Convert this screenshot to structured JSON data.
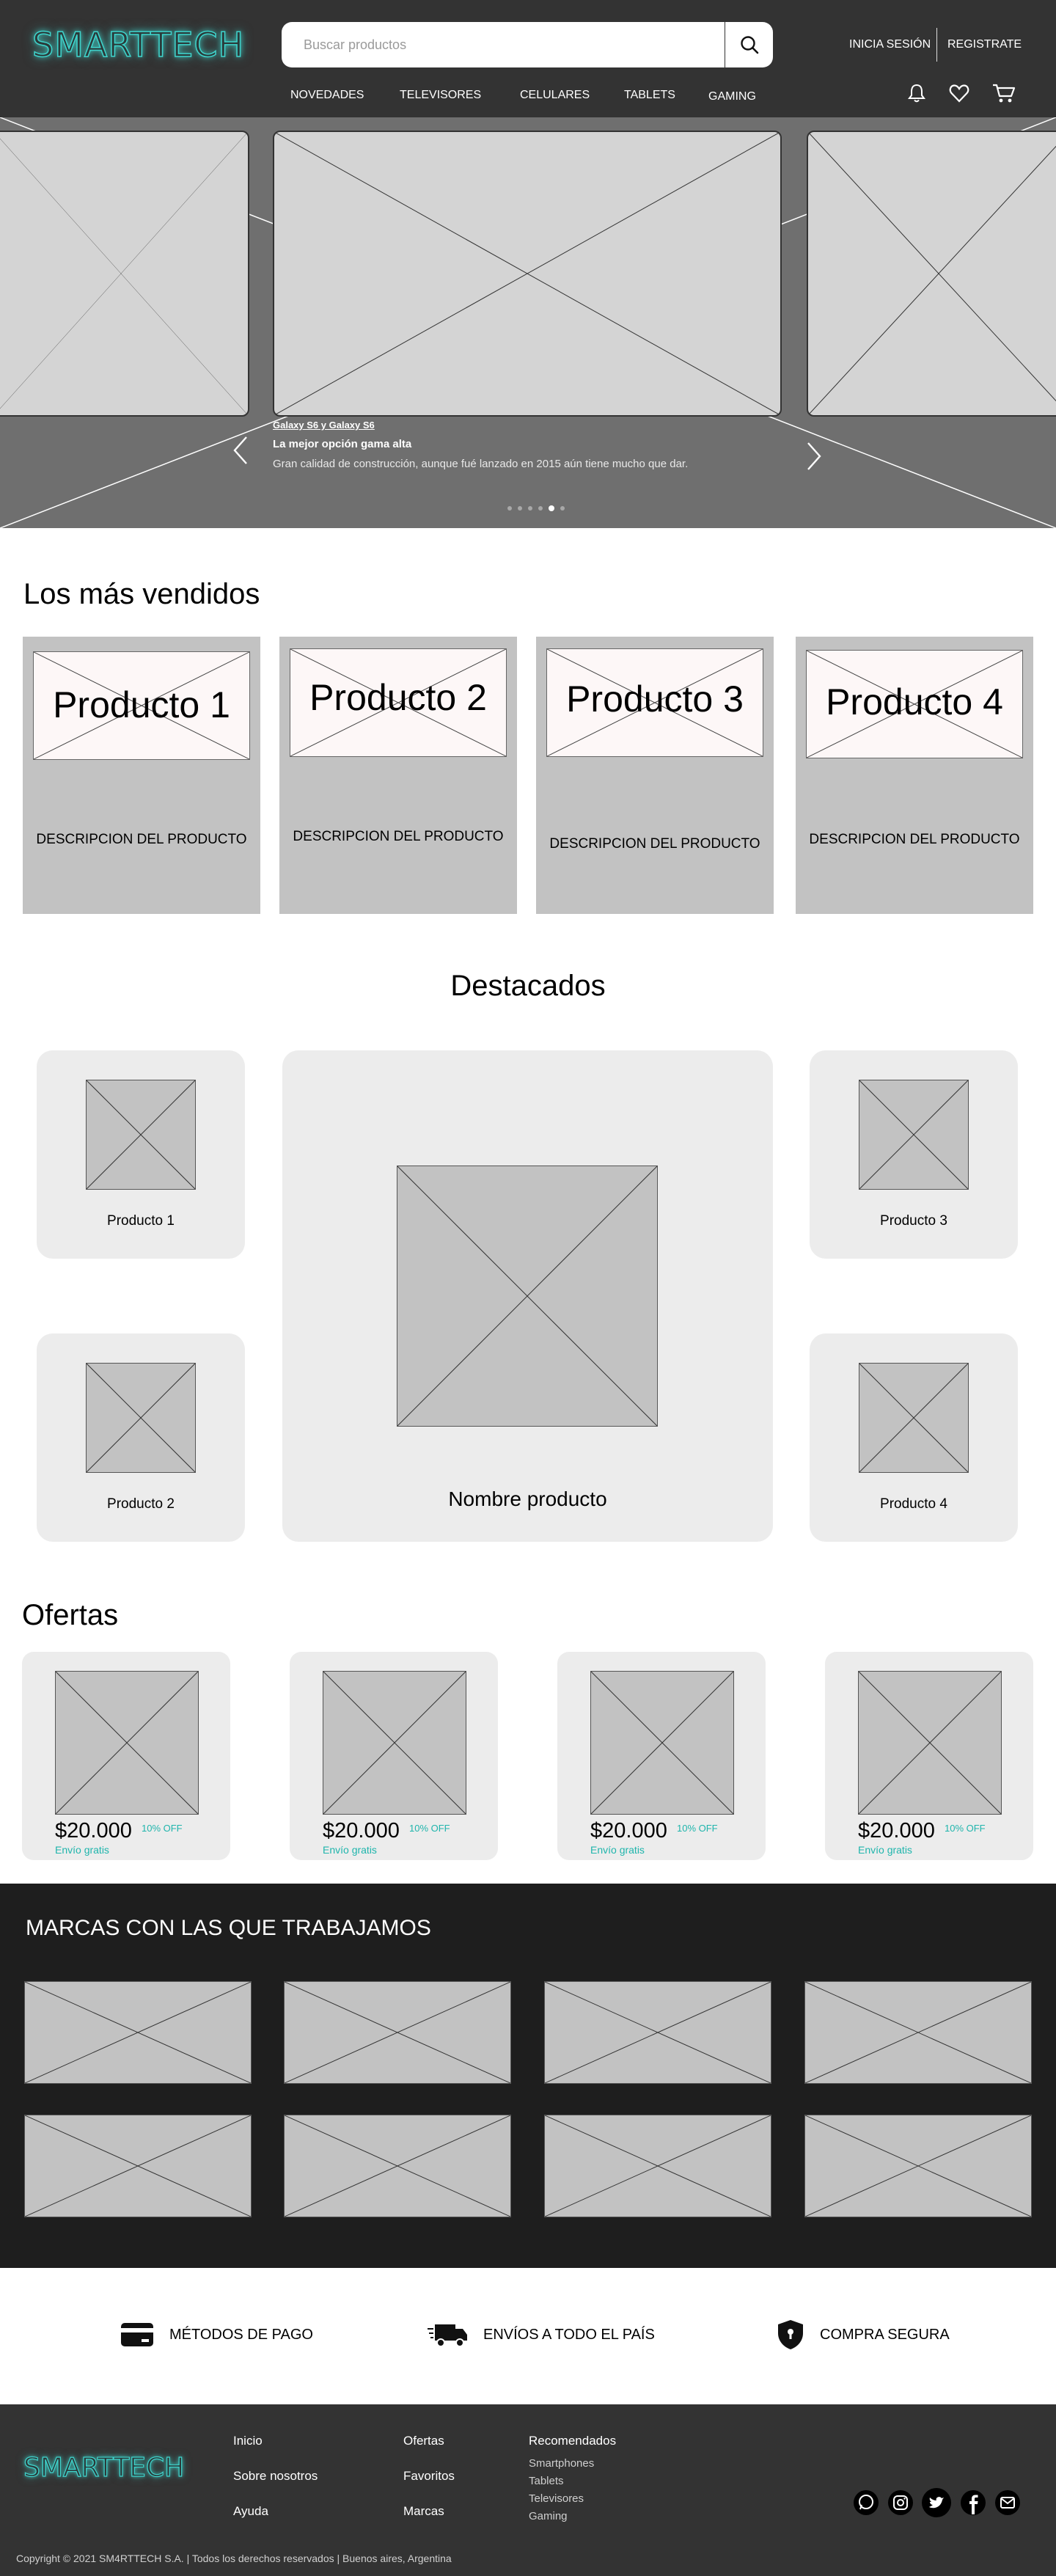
{
  "header": {
    "logo": "SMARTTECH",
    "search_placeholder": "Buscar productos",
    "login": "INICIA SESIÓN",
    "register": "REGISTRATE",
    "nav": [
      "NOVEDADES",
      "TELEVISORES",
      "CELULARES",
      "TABLETS",
      "GAMING"
    ],
    "icons": [
      "bell-icon",
      "heart-icon",
      "cart-icon"
    ]
  },
  "hero": {
    "caption_small": "Galaxy S6 y Galaxy S6",
    "caption_title": "La mejor opción gama alta",
    "caption_desc": "Gran calidad de construcción, aunque fué lanzado en 2015 aún tiene mucho que dar.",
    "dots_count": 6,
    "active_dot": 4
  },
  "best_sellers": {
    "title": "Los más vendidos",
    "items": [
      {
        "name": "Producto 1",
        "desc": "DESCRIPCION DEL PRODUCTO"
      },
      {
        "name": "Producto 2",
        "desc": "DESCRIPCION DEL PRODUCTO"
      },
      {
        "name": "Producto 3",
        "desc": "DESCRIPCION DEL PRODUCTO"
      },
      {
        "name": "Producto 4",
        "desc": "DESCRIPCION DEL PRODUCTO"
      }
    ]
  },
  "featured": {
    "title": "Destacados",
    "items": [
      "Producto 1",
      "Producto 2",
      "Producto 3",
      "Producto 4"
    ],
    "main": "Nombre producto"
  },
  "offers": {
    "title": "Ofertas",
    "items": [
      {
        "price": "$20.000",
        "discount": "10% OFF",
        "shipping": "Envío gratis"
      },
      {
        "price": "$20.000",
        "discount": "10% OFF",
        "shipping": "Envío gratis"
      },
      {
        "price": "$20.000",
        "discount": "10% OFF",
        "shipping": "Envío gratis"
      },
      {
        "price": "$20.000",
        "discount": "10% OFF",
        "shipping": "Envío gratis"
      }
    ]
  },
  "brands": {
    "title": "MARCAS CON LAS QUE TRABAJAMOS",
    "count": 8
  },
  "features": {
    "payment": "MÉTODOS DE PAGO",
    "shipping": "ENVÍOS A TODO EL PAÍS",
    "secure": "COMPRA SEGURA"
  },
  "footer": {
    "logo": "SMARTTECH",
    "col1": [
      "Inicio",
      "Sobre nosotros",
      "Ayuda"
    ],
    "col2": [
      "Ofertas",
      "Favoritos",
      "Marcas"
    ],
    "recommended_title": "Recomendados",
    "recommended": [
      "Smartphones",
      "Tablets",
      "Televisores",
      "Gaming"
    ],
    "social": [
      "whatsapp-icon",
      "instagram-icon",
      "twitter-icon",
      "facebook-icon",
      "mail-icon"
    ],
    "copyright": "Copyright © 2021 SM4RTTECH S.A. | Todos los derechos reservados | Buenos aires, Argentina"
  },
  "colors": {
    "header_bg": "#333333",
    "hero_bg": "#6f6f6f",
    "brands_bg": "#1e1e1e",
    "accent": "#1fb5ac",
    "logo_glow": "#3fd4cc",
    "placeholder": "#c2c2c2"
  }
}
